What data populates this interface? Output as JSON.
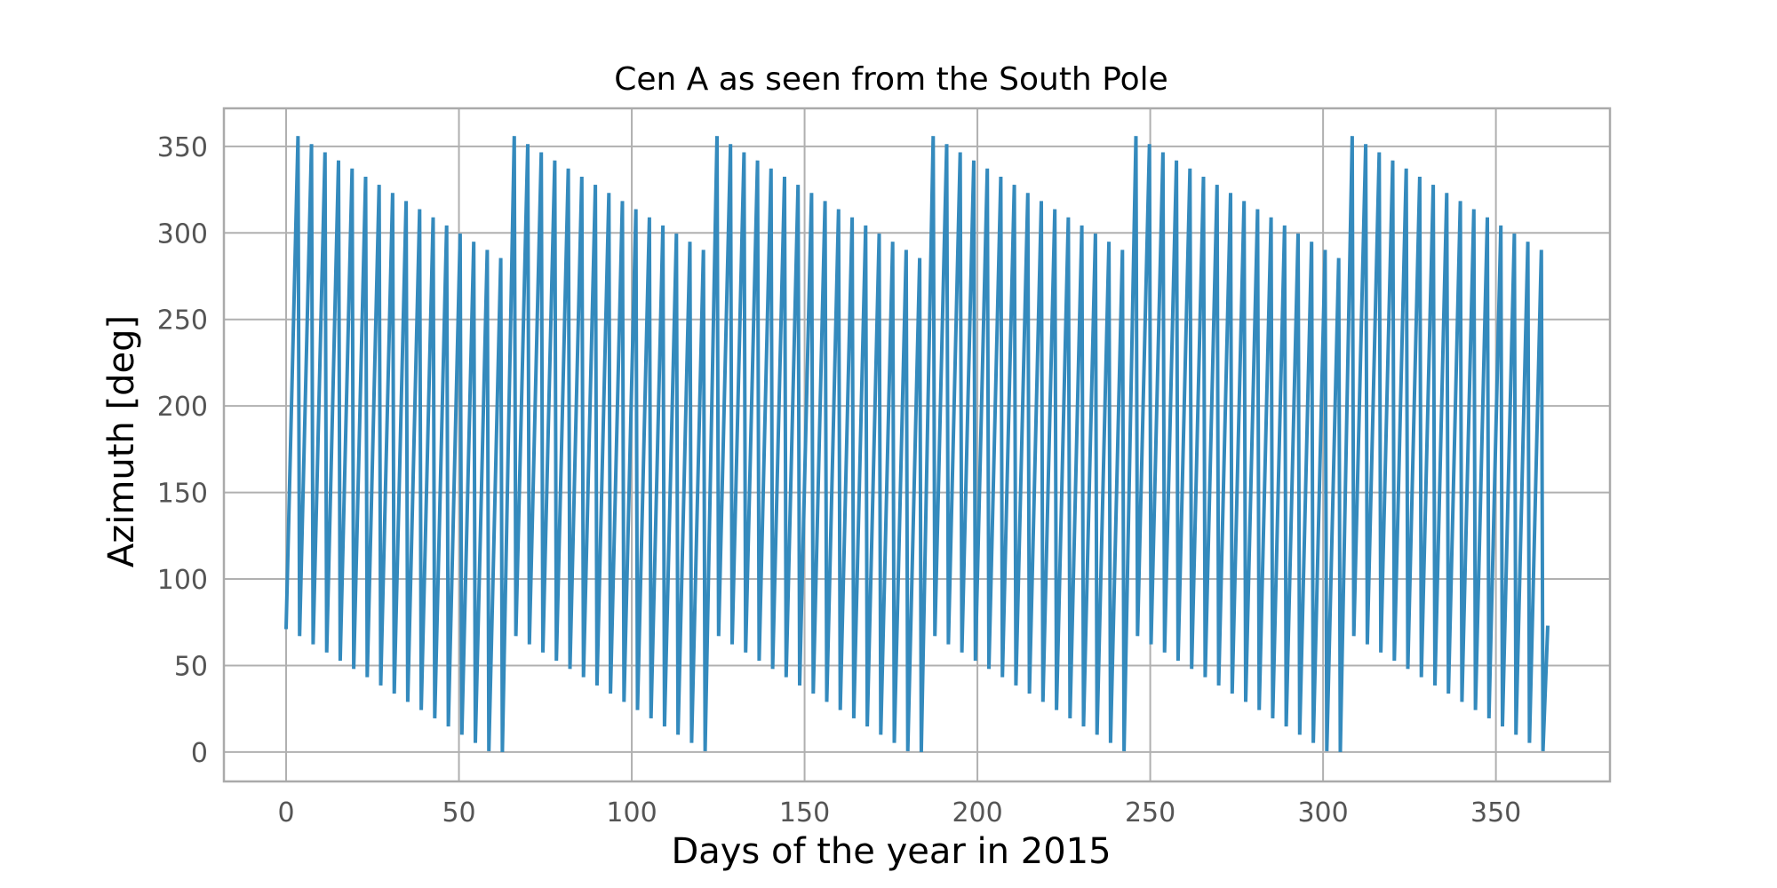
{
  "chart_data": {
    "type": "line",
    "title": "Cen A as seen from the South Pole",
    "xlabel": "Days of the year in 2015",
    "ylabel": "Azimuth [deg]",
    "xlim": [
      -18,
      383
    ],
    "ylim": [
      -17,
      372
    ],
    "xticks": [
      0,
      50,
      100,
      150,
      200,
      250,
      300,
      350
    ],
    "yticks": [
      0,
      50,
      100,
      150,
      200,
      250,
      300,
      350
    ],
    "grid": true,
    "legend": "none",
    "series": [
      {
        "color": "#348ABD",
        "x_start": 0,
        "x_end": 365,
        "start_value": 71,
        "end_value": 73,
        "period_days": 3.91,
        "rise_fraction": 0.88,
        "max_start": 356,
        "max_step": 4.7,
        "min_start": 67,
        "min_step": 4.75,
        "cycles_per_group": 15.5
      }
    ]
  },
  "colors": {
    "line": "#348ABD",
    "grid": "#b0b0b0",
    "frame": "#aaaaaa",
    "tick_text": "#555555"
  }
}
